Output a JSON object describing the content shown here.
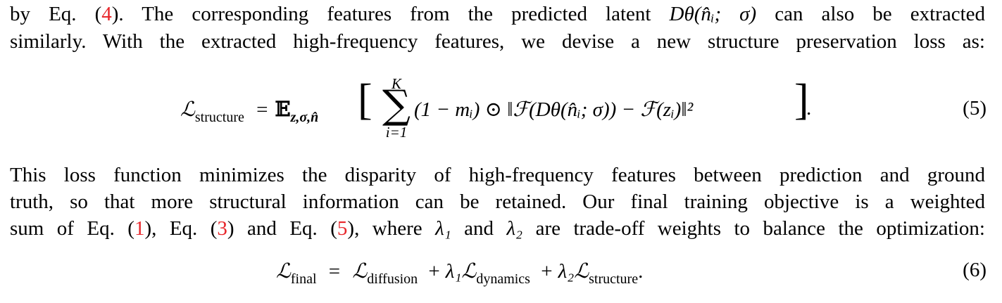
{
  "para1": {
    "line1": {
      "before_ref": "by Eq. (",
      "ref": "4",
      "after_ref": "). The corresponding features from the predicted latent ",
      "math": "Dθ(n̂ᵢ; σ)",
      "tail": " can also be extracted"
    },
    "line2": "similarly. With the extracted high-frequency features, we devise a new structure preservation loss as:"
  },
  "eq5": {
    "lhs_symbol": "ℒ",
    "lhs_sub": "structure",
    "equals": "=",
    "expect_symbol": "𝔼",
    "expect_sub": "z,σ,n̂",
    "sum_upper": "K",
    "sum_lower": "i=1",
    "body": "(1 − mᵢ) ⊙ ‖ℱ(Dθ(n̂ᵢ; σ)) − ℱ(zᵢ)‖²",
    "end": ".",
    "number": "(5)"
  },
  "para2": {
    "line1": "This loss function minimizes the disparity of high-frequency features between prediction and ground",
    "line2": "truth, so that more structural information can be retained. Our final training objective is a weighted",
    "line3": {
      "t1": "sum of Eq. (",
      "r1": "1",
      "t2": "), Eq. (",
      "r2": "3",
      "t3": ") and Eq. (",
      "r3": "5",
      "t4": "), where ",
      "m1": "λ₁",
      "t5": " and ",
      "m2": "λ₂",
      "t6": " are trade-off weights to balance the optimization:"
    }
  },
  "eq6": {
    "lhs_symbol": "ℒ",
    "lhs_sub": "final",
    "equals": "=",
    "term1_symbol": "ℒ",
    "term1_sub": "diffusion",
    "plus1": "+",
    "lambda1": "λ₁",
    "term2_symbol": "ℒ",
    "term2_sub": "dynamics",
    "plus2": "+",
    "lambda2": "λ₂",
    "term3_symbol": "ℒ",
    "term3_sub": "structure",
    "end": ".",
    "number": "(6)"
  }
}
